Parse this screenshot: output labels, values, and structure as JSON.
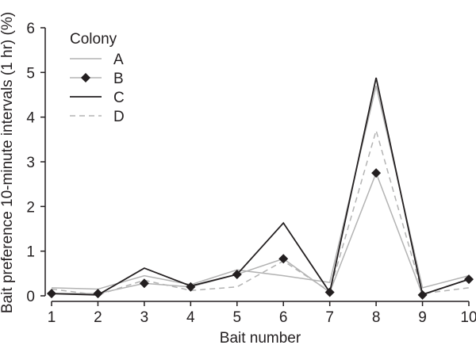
{
  "chart_data": {
    "type": "line",
    "title": "",
    "xlabel": "Bait number",
    "ylabel": "Bait preference 10-minute intervals (1 hr) (%)",
    "x": [
      1,
      2,
      3,
      4,
      5,
      6,
      7,
      8,
      9,
      10
    ],
    "xticks": [
      "1",
      "2",
      "3",
      "4",
      "5",
      "6",
      "7",
      "8",
      "9",
      "10"
    ],
    "yticks": [
      "0",
      "1",
      "2",
      "3",
      "4",
      "5",
      "6"
    ],
    "ylim": [
      0,
      6
    ],
    "xlim": [
      1,
      10
    ],
    "grid": false,
    "legend": {
      "title": "Colony",
      "placement": "top-left"
    },
    "series": [
      {
        "name": "A",
        "color": "#b3b3b3",
        "style": "solid",
        "marker": "none",
        "values": [
          0.18,
          0.15,
          0.45,
          0.25,
          0.58,
          0.45,
          0.3,
          4.7,
          0.18,
          0.45
        ]
      },
      {
        "name": "B",
        "color": "#b3b3b3",
        "style": "solid",
        "marker": "diamond",
        "marker_color": "#231f20",
        "values": [
          0.05,
          0.05,
          0.28,
          0.2,
          0.48,
          0.83,
          0.08,
          2.75,
          0.02,
          0.37
        ]
      },
      {
        "name": "C",
        "color": "#231f20",
        "style": "solid",
        "marker": "none",
        "values": [
          0.05,
          0.02,
          0.62,
          0.22,
          0.48,
          1.63,
          0.08,
          4.88,
          0.03,
          0.37
        ]
      },
      {
        "name": "D",
        "color": "#b3b3b3",
        "style": "dashed",
        "marker": "none",
        "values": [
          0.15,
          0.02,
          0.35,
          0.12,
          0.2,
          0.78,
          0.1,
          3.7,
          0.05,
          0.18
        ]
      }
    ]
  }
}
